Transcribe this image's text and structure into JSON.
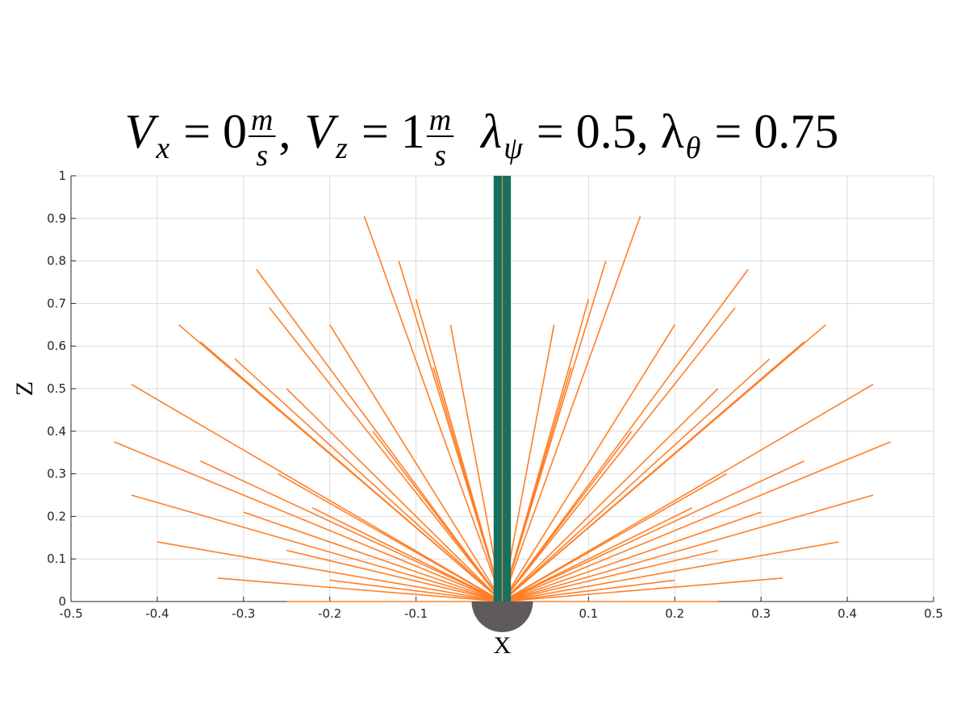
{
  "chart_data": {
    "type": "rays",
    "title": [
      {
        "t": "V",
        "it": true
      },
      {
        "t": "x",
        "sub": true,
        "it": true
      },
      {
        "t": " = 0"
      },
      {
        "num": "m",
        "den": "s"
      },
      {
        "t": ", "
      },
      {
        "t": "V",
        "it": true
      },
      {
        "t": "z",
        "sub": true,
        "it": true
      },
      {
        "t": " = 1"
      },
      {
        "num": "m",
        "den": "s"
      },
      {
        "t": "  λ",
        "it": true
      },
      {
        "t": "ψ",
        "sub": true,
        "it": true
      },
      {
        "t": " = 0.5, λ"
      },
      {
        "t": "θ",
        "sub": true,
        "it": true
      },
      {
        "t": " = 0.75"
      }
    ],
    "xlabel": "X",
    "ylabel": "Z",
    "xlim": [
      -0.5,
      0.5
    ],
    "ylim": [
      0,
      1
    ],
    "xticks": [
      -0.5,
      -0.4,
      -0.3,
      -0.2,
      -0.1,
      0,
      0.1,
      0.2,
      0.3,
      0.4,
      0.5
    ],
    "yticks": [
      0,
      0.1,
      0.2,
      0.3,
      0.4,
      0.5,
      0.6,
      0.7,
      0.8,
      0.9,
      1
    ],
    "grid": true,
    "color": "#ff7f27",
    "rays": {
      "x": [
        -0.45,
        0.45,
        -0.43,
        0.43,
        -0.43,
        0.43,
        -0.4,
        0.39,
        -0.375,
        0.375,
        -0.33,
        0.325,
        -0.285,
        0.285,
        -0.16,
        0.16,
        -0.35,
        0.35,
        -0.31,
        0.31,
        -0.27,
        0.27,
        -0.26,
        0.26,
        -0.2,
        0.2,
        -0.12,
        0.12,
        -0.1,
        0.1,
        -0.06,
        0.06,
        -0.25,
        0.25,
        -0.3,
        0.3,
        -0.25,
        0.25,
        -0.2,
        0.2,
        -0.25,
        0.25,
        -0.08,
        0.08,
        -0.15,
        0.15,
        -0.35,
        0.35,
        -0.22,
        0.22
      ],
      "y": [
        0.375,
        0.375,
        0.25,
        0.25,
        0.51,
        0.51,
        0.14,
        0.14,
        0.65,
        0.65,
        0.055,
        0.055,
        0.78,
        0.78,
        0.905,
        0.905,
        0.61,
        0.61,
        0.57,
        0.57,
        0.69,
        0.69,
        0.3,
        0.3,
        0.65,
        0.65,
        0.8,
        0.8,
        0.71,
        0.71,
        0.65,
        0.65,
        0.5,
        0.5,
        0.21,
        0.21,
        0.12,
        0.12,
        0.05,
        0.05,
        0,
        0,
        0.55,
        0.55,
        0.4,
        0.4,
        0.33,
        0.33,
        0.22,
        0.22
      ]
    },
    "band": {
      "x": [
        -0.01,
        0.01
      ],
      "y": [
        0,
        1
      ],
      "color": "#16705f"
    }
  }
}
